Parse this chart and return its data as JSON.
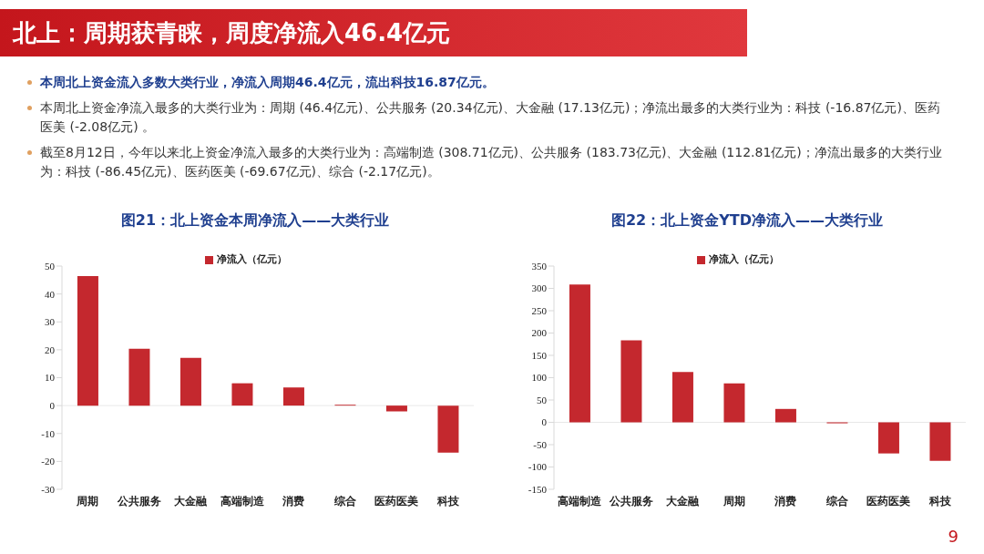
{
  "chart_data": [
    {
      "type": "other",
      "title": "北上：周期获青睐，周度净流入46.4亿元",
      "annotations": [
        "本周北上资金流入多数大类行业，净流入周期46.4亿元，流出科技16.87亿元。",
        "本周北上资金净流入最多的大类行业为：周期 (46.4亿元)、公共服务 (20.34亿元)、大金融 (17.13亿元)；净流出最多的大类行业为：科技 (-16.87亿元)、医药医美 (-2.08亿元) 。",
        "截至8月12日，今年以来北上资金净流入最多的大类行业为：高端制造 (308.71亿元)、公共服务 (183.73亿元)、大金融 (112.81亿元)；净流出最多的大类行业为：科技 (-86.45亿元)、医药医美 (-69.67亿元)、综合 (-2.17亿元)。",
        "9"
      ]
    },
    {
      "type": "bar",
      "title": "图21：北上资金本周净流入——大类行业",
      "categories": [
        "周期",
        "公共服务",
        "大金融",
        "高端制造",
        "消费",
        "综合",
        "医药医美",
        "科技"
      ],
      "series": [
        {
          "name": "净流入（亿元）",
          "color": "#c4282e",
          "values": [
            46.4,
            20.34,
            17.13,
            8,
            6.5,
            0.3,
            -2.08,
            -16.87
          ]
        }
      ],
      "ylim": [
        -30,
        50
      ],
      "yticks": [
        -30,
        -20,
        -10,
        0,
        10,
        20,
        30,
        40,
        50
      ],
      "legend": "top"
    },
    {
      "type": "bar",
      "title": "图22：北上资金YTD净流入——大类行业",
      "categories": [
        "高端制造",
        "公共服务",
        "大金融",
        "周期",
        "消费",
        "综合",
        "医药医美",
        "科技"
      ],
      "series": [
        {
          "name": "净流入（亿元）",
          "color": "#c4282e",
          "values": [
            308.71,
            183.73,
            112.81,
            87,
            30,
            -2.17,
            -69.67,
            -86.45
          ]
        }
      ],
      "ylim": [
        -150,
        350
      ],
      "yticks": [
        -150,
        -100,
        -50,
        0,
        50,
        100,
        150,
        200,
        250,
        300,
        350
      ],
      "legend": "top"
    }
  ]
}
